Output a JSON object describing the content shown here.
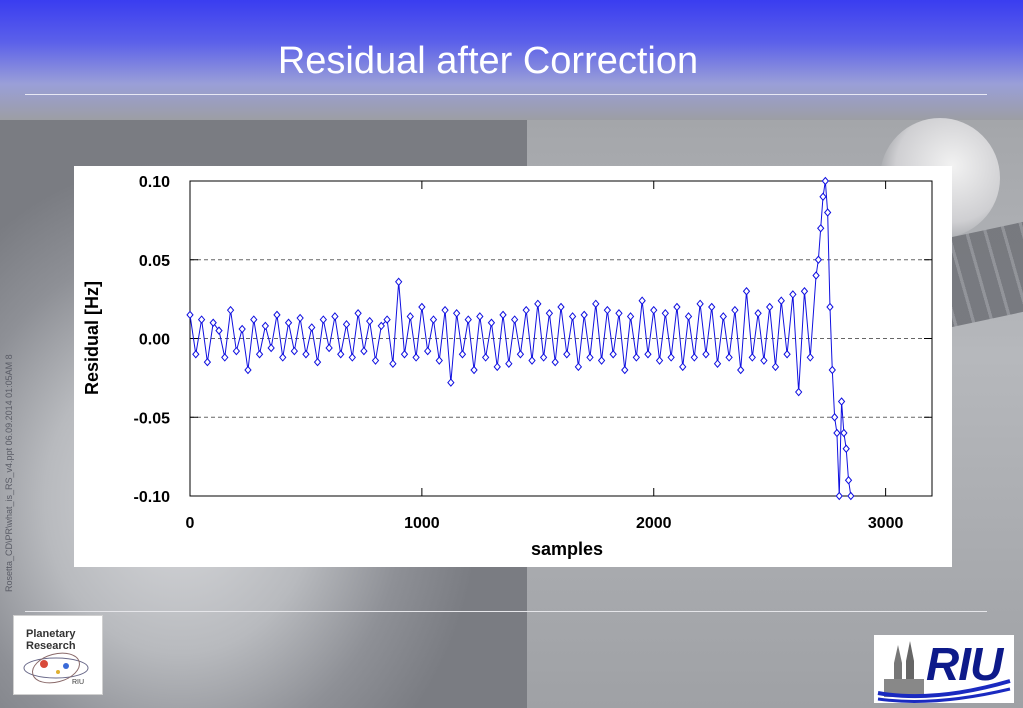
{
  "slide": {
    "title": "Residual after Correction",
    "side_note": "Rosetta_CD\\PR\\what_is_RS_v4.ppt  06.09.2014 01:05AM  8"
  },
  "logos": {
    "left_text": "Planetary Research",
    "left_small": "RIU",
    "right_text": "RIU"
  },
  "colors": {
    "series": "#1010e0",
    "header": "#3a3df0"
  },
  "chart_data": {
    "type": "scatter",
    "title": "",
    "xlabel": "samples",
    "ylabel": "Residual [Hz]",
    "xlim": [
      0,
      3200
    ],
    "ylim": [
      -0.1,
      0.1
    ],
    "x_ticks": [
      0,
      1000,
      2000,
      3000
    ],
    "y_ticks": [
      0.1,
      0.05,
      0.0,
      -0.05,
      -0.1
    ],
    "y_tick_labels": [
      "0.10",
      "0.05",
      "0.00",
      "-0.05",
      "-0.10"
    ],
    "x_tick_labels": [
      "0",
      "1000",
      "2000",
      "3000"
    ],
    "grid": "dashed horizontal",
    "marker": "open diamond with connecting line",
    "series": [
      {
        "x": [
          0,
          25,
          50,
          75,
          100,
          125,
          150,
          175,
          200,
          225,
          250,
          275,
          300,
          325,
          350,
          375,
          400,
          425,
          450,
          475,
          500,
          525,
          550,
          575,
          600,
          625,
          650,
          675,
          700,
          725,
          750,
          775,
          800,
          825,
          850,
          875,
          900,
          925,
          950,
          975,
          1000,
          1025,
          1050,
          1075,
          1100,
          1125,
          1150,
          1175,
          1200,
          1225,
          1250,
          1275,
          1300,
          1325,
          1350,
          1375,
          1400,
          1425,
          1450,
          1475,
          1500,
          1525,
          1550,
          1575,
          1600,
          1625,
          1650,
          1675,
          1700,
          1725,
          1750,
          1775,
          1800,
          1825,
          1850,
          1875,
          1900,
          1925,
          1950,
          1975,
          2000,
          2025,
          2050,
          2075,
          2100,
          2125,
          2150,
          2175,
          2200,
          2225,
          2250,
          2275,
          2300,
          2325,
          2350,
          2375,
          2400,
          2425,
          2450,
          2475,
          2500,
          2525,
          2550,
          2575,
          2600,
          2625,
          2650,
          2675,
          2700,
          2710,
          2720,
          2730,
          2740,
          2750,
          2760,
          2770,
          2780,
          2790,
          2800,
          2810,
          2820,
          2830,
          2840,
          2850
        ],
        "y": [
          0.015,
          -0.01,
          0.012,
          -0.015,
          0.01,
          0.005,
          -0.012,
          0.018,
          -0.008,
          0.006,
          -0.02,
          0.012,
          -0.01,
          0.008,
          -0.006,
          0.015,
          -0.012,
          0.01,
          -0.008,
          0.013,
          -0.01,
          0.007,
          -0.015,
          0.012,
          -0.006,
          0.014,
          -0.01,
          0.009,
          -0.012,
          0.016,
          -0.008,
          0.011,
          -0.014,
          0.008,
          0.012,
          -0.016,
          0.036,
          -0.01,
          0.014,
          -0.012,
          0.02,
          -0.008,
          0.012,
          -0.014,
          0.018,
          -0.028,
          0.016,
          -0.01,
          0.012,
          -0.02,
          0.014,
          -0.012,
          0.01,
          -0.018,
          0.015,
          -0.016,
          0.012,
          -0.01,
          0.018,
          -0.014,
          0.022,
          -0.012,
          0.016,
          -0.015,
          0.02,
          -0.01,
          0.014,
          -0.018,
          0.015,
          -0.012,
          0.022,
          -0.014,
          0.018,
          -0.01,
          0.016,
          -0.02,
          0.014,
          -0.012,
          0.024,
          -0.01,
          0.018,
          -0.014,
          0.016,
          -0.012,
          0.02,
          -0.018,
          0.014,
          -0.012,
          0.022,
          -0.01,
          0.02,
          -0.016,
          0.014,
          -0.012,
          0.018,
          -0.02,
          0.03,
          -0.012,
          0.016,
          -0.014,
          0.02,
          -0.018,
          0.024,
          -0.01,
          0.028,
          -0.034,
          0.03,
          -0.012,
          0.04,
          0.05,
          0.07,
          0.09,
          0.1,
          0.08,
          0.02,
          -0.02,
          -0.05,
          -0.06,
          -0.1,
          -0.04,
          -0.06,
          -0.07,
          -0.09,
          -0.1
        ]
      }
    ]
  }
}
